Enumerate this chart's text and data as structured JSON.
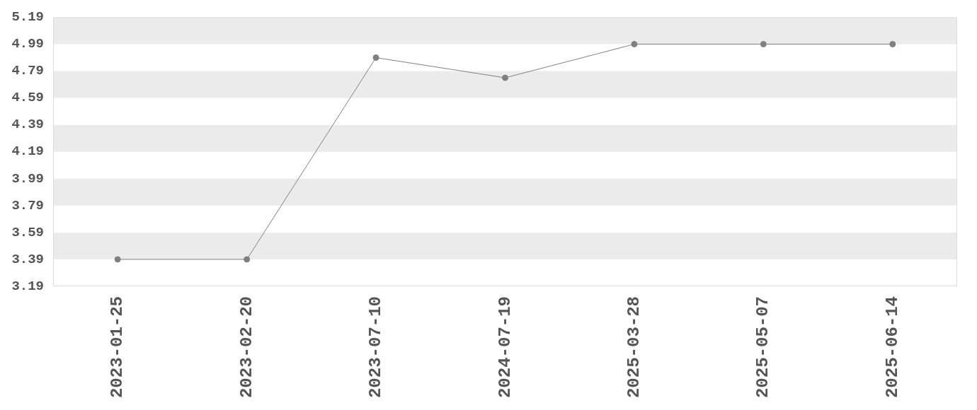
{
  "chart_data": {
    "type": "line",
    "categories": [
      "2023-01-25",
      "2023-02-20",
      "2023-07-10",
      "2024-07-19",
      "2025-03-28",
      "2025-05-07",
      "2025-06-14"
    ],
    "values": [
      3.39,
      3.39,
      4.89,
      4.74,
      4.99,
      4.99,
      4.99
    ],
    "color": "#808080",
    "ylim": [
      3.19,
      5.19
    ],
    "yticks": [
      3.19,
      3.39,
      3.59,
      3.79,
      3.99,
      4.19,
      4.39,
      4.59,
      4.79,
      4.99,
      5.19
    ],
    "bands": [
      {
        "axis": "y",
        "from": 4.99,
        "to": 5.19,
        "color": "#ebebeb"
      },
      {
        "axis": "y",
        "from": 4.59,
        "to": 4.79,
        "color": "#ebebeb"
      },
      {
        "axis": "y",
        "from": 4.19,
        "to": 4.39,
        "color": "#ebebeb"
      },
      {
        "axis": "y",
        "from": 3.79,
        "to": 3.99,
        "color": "#ebebeb"
      },
      {
        "axis": "y",
        "from": 3.39,
        "to": 3.59,
        "color": "#ebebeb"
      }
    ],
    "marker": "circle",
    "line_style": "solid"
  }
}
